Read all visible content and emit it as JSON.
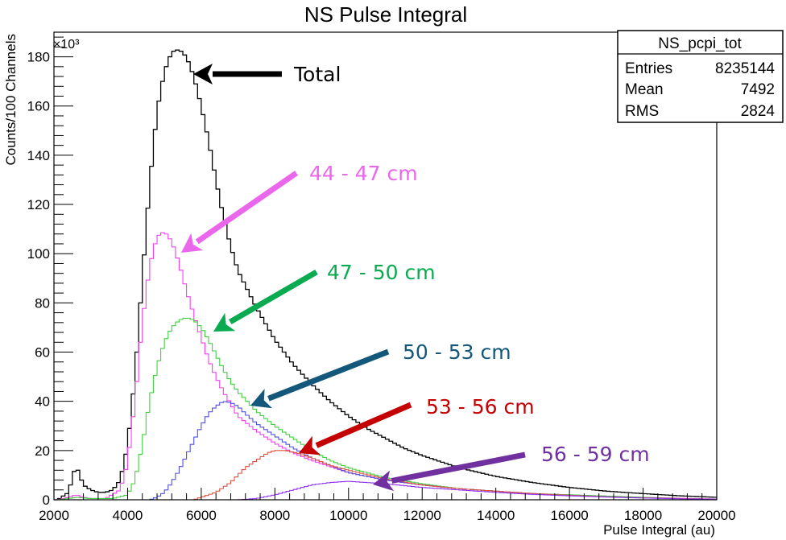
{
  "chart_data": {
    "type": "line",
    "title": "NS Pulse Integral",
    "xlabel": "Pulse Integral (au)",
    "ylabel": "Counts/100 Channels",
    "y_multiplier": "×10³",
    "xlim": [
      2000,
      20000
    ],
    "ylim": [
      0,
      190
    ],
    "x_ticks": [
      "2000",
      "4000",
      "6000",
      "8000",
      "10000",
      "12000",
      "14000",
      "16000",
      "18000",
      "20000"
    ],
    "y_ticks": [
      "0",
      "20",
      "40",
      "60",
      "80",
      "100",
      "120",
      "140",
      "160",
      "180"
    ],
    "grid": false,
    "stats_box": {
      "name": "NS_pcpi_tot",
      "rows": [
        {
          "label": "Entries",
          "value": "8235144"
        },
        {
          "label": "Mean",
          "value": "7492"
        },
        {
          "label": "RMS",
          "value": "2824"
        }
      ]
    },
    "series": [
      {
        "name": "Total",
        "color": "#000000",
        "x": [
          2100,
          2400,
          2500,
          2600,
          2800,
          3000,
          3200,
          3400,
          3600,
          3800,
          4000,
          4200,
          4400,
          4600,
          4800,
          5000,
          5200,
          5400,
          5600,
          5800,
          6000,
          6200,
          6400,
          6600,
          6800,
          7000,
          7500,
          8000,
          8500,
          9000,
          9500,
          10000,
          10500,
          11000,
          11500,
          12000,
          13000,
          14000,
          15000,
          16000,
          17000,
          18000,
          19000,
          20000
        ],
        "y": [
          0,
          3,
          9,
          14,
          6,
          4,
          3,
          3,
          4,
          8,
          22,
          50,
          90,
          128,
          158,
          174,
          182,
          183,
          180,
          172,
          160,
          146,
          130,
          115,
          103,
          93,
          78,
          65,
          55,
          47,
          40,
          34,
          29,
          25,
          21,
          18,
          13,
          9.5,
          7,
          5,
          3.5,
          2.5,
          1.6,
          1
        ]
      },
      {
        "name": "44 - 47 cm",
        "color": "#f040f0",
        "x": [
          2100,
          2400,
          2600,
          2800,
          3000,
          3400,
          3800,
          4000,
          4200,
          4400,
          4600,
          4800,
          5000,
          5200,
          5400,
          5600,
          5800,
          6000,
          6200,
          6400,
          6600,
          6800,
          7000,
          7500,
          8000,
          8500,
          9000,
          9500,
          10000,
          11000,
          12000,
          13000,
          14000,
          15000,
          16000,
          17000,
          18000,
          19000,
          20000
        ],
        "y": [
          0,
          1,
          2,
          1,
          0.5,
          0.5,
          4,
          15,
          40,
          72,
          95,
          107,
          109,
          105,
          96,
          85,
          75,
          66,
          57,
          50,
          44,
          39,
          34,
          28,
          23,
          19,
          16,
          13.5,
          11,
          8,
          6,
          4.5,
          3.5,
          2.5,
          2,
          1.5,
          1,
          0.6,
          0.3
        ]
      },
      {
        "name": "47 - 50 cm",
        "color": "#40d040",
        "x": [
          2100,
          2400,
          2600,
          3000,
          3600,
          4000,
          4200,
          4400,
          4600,
          4800,
          5000,
          5200,
          5400,
          5600,
          5800,
          6000,
          6200,
          6400,
          6600,
          6800,
          7000,
          7500,
          8000,
          8500,
          9000,
          9500,
          10000,
          11000,
          12000,
          13000,
          14000,
          15000,
          16000,
          17000,
          18000,
          19000,
          20000
        ],
        "y": [
          0,
          0.5,
          1,
          0.5,
          0.5,
          2,
          8,
          22,
          40,
          54,
          64,
          70,
          73,
          74,
          73,
          70,
          65,
          59,
          53,
          48,
          44,
          36,
          30,
          25,
          20,
          16,
          13,
          9,
          6.5,
          4.5,
          3.5,
          2.5,
          2,
          1.5,
          1,
          0.5,
          0.2
        ]
      },
      {
        "name": "50 - 53 cm",
        "color": "#5050e0",
        "x": [
          2000,
          3000,
          4000,
          4600,
          4800,
          5000,
          5200,
          5400,
          5600,
          5800,
          6000,
          6200,
          6400,
          6600,
          6800,
          7000,
          7200,
          7500,
          8000,
          8500,
          9000,
          9500,
          10000,
          11000,
          12000,
          13000,
          14000,
          15000,
          16000,
          17000,
          18000,
          19000,
          20000
        ],
        "y": [
          0,
          0,
          0,
          0,
          1,
          3,
          7,
          12,
          18,
          24,
          30,
          35,
          38,
          40,
          39.5,
          38,
          35,
          31,
          26,
          21,
          17,
          14,
          11,
          8,
          6,
          4.5,
          3.5,
          2.5,
          1.8,
          1.2,
          0.8,
          0.5,
          0.2
        ]
      },
      {
        "name": "53 - 56 cm",
        "color": "#e05040",
        "x": [
          2000,
          5000,
          5800,
          6000,
          6400,
          6800,
          7000,
          7200,
          7500,
          7800,
          8000,
          8300,
          8600,
          9000,
          9500,
          10000,
          11000,
          12000,
          13000,
          14000,
          15000,
          16000,
          17000,
          18000,
          19000,
          20000
        ],
        "y": [
          0,
          0,
          0,
          1,
          3,
          7,
          10,
          13,
          16,
          19,
          20,
          20,
          19,
          17,
          14,
          12,
          8.5,
          6,
          4.5,
          3.5,
          2.5,
          1.8,
          1.2,
          0.8,
          0.5,
          0.2
        ]
      },
      {
        "name": "56 - 59 cm",
        "color": "#9030f0",
        "x": [
          2000,
          6000,
          7000,
          7500,
          8000,
          8500,
          9000,
          9500,
          10000,
          10500,
          11000,
          12000,
          13000,
          14000,
          15000,
          16000,
          17000,
          18000,
          19000,
          20000
        ],
        "y": [
          0,
          0,
          0,
          0.5,
          2,
          4,
          6,
          7,
          7.5,
          7,
          6.5,
          5,
          4,
          3,
          2.2,
          1.6,
          1.1,
          0.7,
          0.4,
          0.2
        ]
      }
    ],
    "annotations": [
      {
        "text": "Total",
        "color": "#000000"
      },
      {
        "text": "44 - 47 cm",
        "color": "#ea66ea"
      },
      {
        "text": "47 - 50 cm",
        "color": "#0aaa50"
      },
      {
        "text": "50 - 53 cm",
        "color": "#13577b"
      },
      {
        "text": "53 - 56 cm",
        "color": "#c40000"
      },
      {
        "text": "56 - 59 cm",
        "color": "#7030a0"
      }
    ]
  }
}
